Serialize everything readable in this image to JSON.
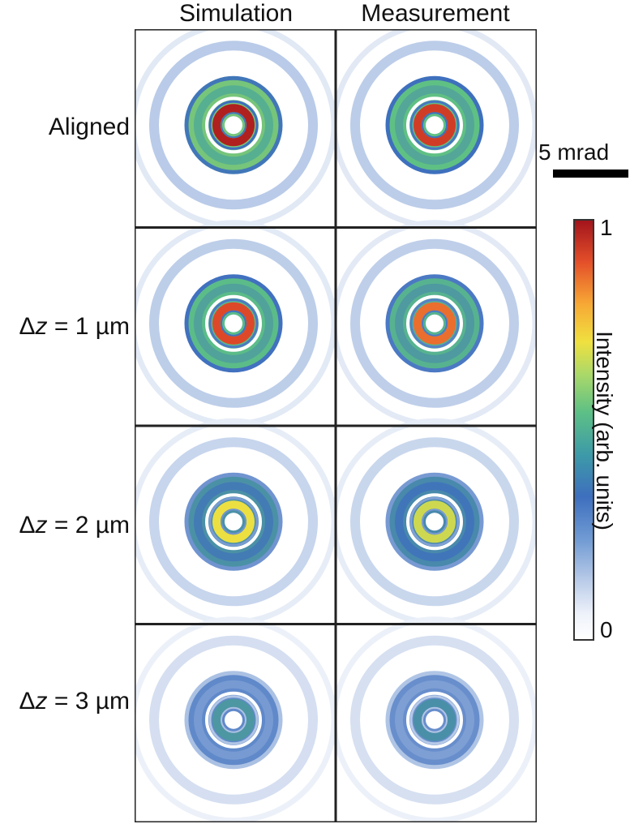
{
  "columns": [
    "Simulation",
    "Measurement"
  ],
  "rows": [
    {
      "label_prefix": "",
      "label_var": "",
      "label_value": "Aligned",
      "intensity": 1.0
    },
    {
      "label_prefix": "Δ",
      "label_var": "z",
      "label_value": " = 1 µm",
      "intensity": 0.93
    },
    {
      "label_prefix": "Δ",
      "label_var": "z",
      "label_value": " = 2 µm",
      "intensity": 0.72
    },
    {
      "label_prefix": "Δ",
      "label_var": "z",
      "label_value": " = 3 µm",
      "intensity": 0.45
    }
  ],
  "scale_bar": {
    "label": "5 mrad"
  },
  "colorbar": {
    "label": "Intensity (arb. units)",
    "min_label": "0",
    "max_label": "1",
    "colors": [
      "#ffffff",
      "#b9cbe8",
      "#3e6fbe",
      "#5cbf86",
      "#f0e040",
      "#f7a935",
      "#e4502a",
      "#a3141c"
    ]
  }
}
